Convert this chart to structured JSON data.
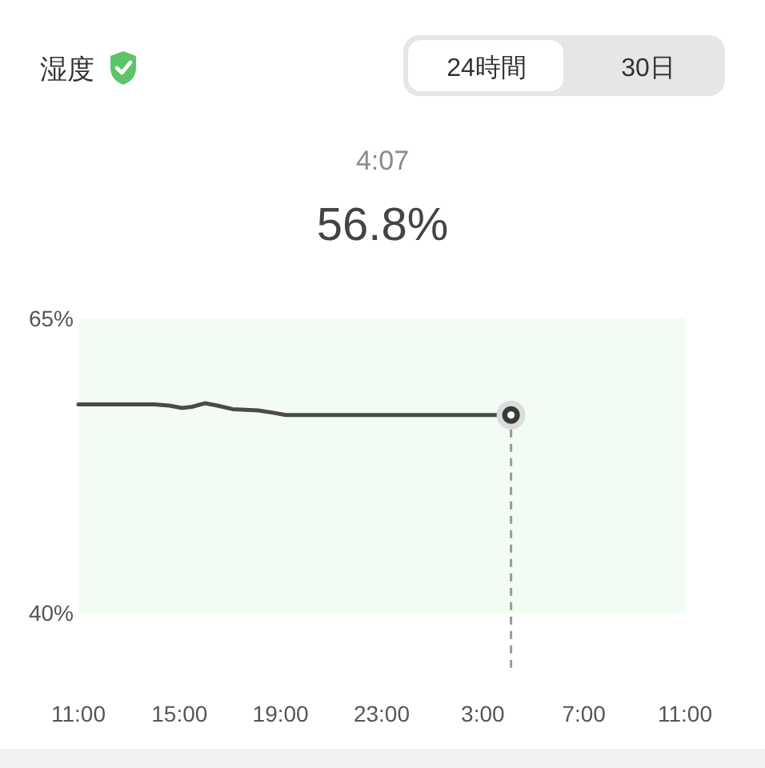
{
  "chart_data": {
    "type": "line",
    "title": "湿度",
    "annotations": [
      "24時間",
      "30日",
      "4:07",
      "56.8%"
    ],
    "xlim": [
      "2000-01-01T11:00",
      "2000-01-02T11:00"
    ],
    "xticks": [
      {
        "value": "2000-01-01T11:00",
        "label": "11:00"
      },
      {
        "value": "2000-01-01T15:00",
        "label": "15:00"
      },
      {
        "value": "2000-01-01T19:00",
        "label": "19:00"
      },
      {
        "value": "2000-01-01T23:00",
        "label": "23:00"
      },
      {
        "value": "2000-01-02T03:00",
        "label": "3:00"
      },
      {
        "value": "2000-01-02T07:00",
        "label": "7:00"
      },
      {
        "value": "2000-01-02T11:00",
        "label": "11:00"
      }
    ],
    "ylim": [
      35,
      65
    ],
    "yticks": [
      {
        "value": 40,
        "label": "40%"
      },
      {
        "value": 65,
        "label": "65%"
      }
    ],
    "series": [
      {
        "color": "#4a4a4a",
        "marker": "none",
        "x": [
          "2000-01-01T11:00",
          "2000-01-01T14:00",
          "2000-01-01T14:36",
          "2000-01-01T15:06",
          "2000-01-01T15:30",
          "2000-01-01T16:00",
          "2000-01-01T16:30",
          "2000-01-01T17:06",
          "2000-01-01T18:06",
          "2000-01-01T18:42",
          "2000-01-01T19:12",
          "2000-01-01T20:00",
          "2000-01-02T04:07"
        ],
        "values": [
          57.7,
          57.7,
          57.6,
          57.4,
          57.5,
          57.8,
          57.6,
          57.3,
          57.2,
          57.0,
          56.8,
          56.8,
          56.8
        ]
      },
      {
        "type": "scatter",
        "color": "#3a3a3a",
        "marker": "circle",
        "x": [
          "2000-01-02T04:07"
        ],
        "values": [
          56.8
        ]
      }
    ],
    "bands": [
      {
        "axis": "y",
        "from": 40,
        "to": 65,
        "color": "#f3fcf2"
      }
    ],
    "ref_lines": [
      {
        "axis": "x",
        "value": "2000-01-02T04:07",
        "color": "#9a9a9a",
        "line_style": "dashed"
      }
    ]
  }
}
